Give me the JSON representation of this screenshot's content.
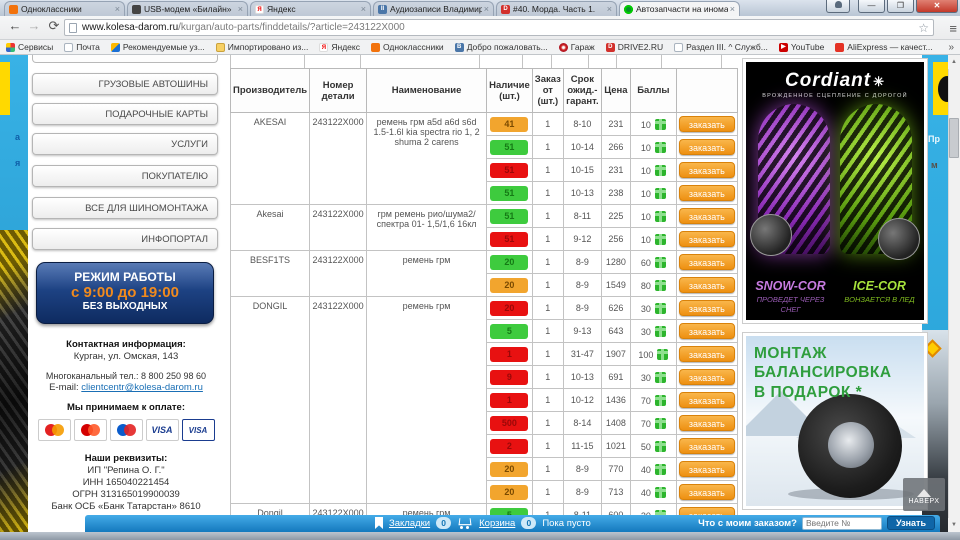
{
  "browser": {
    "tabs": [
      {
        "title": "Одноклассники",
        "icon": "odnoklassniki",
        "active": false
      },
      {
        "title": "USB-модем «Билайн»",
        "icon": "usb-modem",
        "active": false
      },
      {
        "title": "Яндекс",
        "icon": "yandex",
        "active": false
      },
      {
        "title": "Аудиозаписи Владимира",
        "icon": "vk-audio",
        "active": false
      },
      {
        "title": "#40. Морда. Часть 1.",
        "icon": "drive2",
        "active": false
      },
      {
        "title": "Автозапчасти на иномар",
        "icon": "kolesa",
        "active": true
      }
    ],
    "url_host": "www.kolesa-darom.ru",
    "url_path": "/kurgan/auto-parts/finddetails/?article=243122X000",
    "bookmarks": [
      {
        "label": "Сервисы",
        "icon": "apps-grid"
      },
      {
        "label": "Почта",
        "icon": "page"
      },
      {
        "label": "Рекомендуемые уз...",
        "icon": "bing"
      },
      {
        "label": "Импортировано из...",
        "icon": "folder"
      },
      {
        "label": "Яндекс",
        "icon": "yandex"
      },
      {
        "label": "Одноклассники",
        "icon": "odnoklassniki"
      },
      {
        "label": "Добро пожаловать...",
        "icon": "vk"
      },
      {
        "label": "Гараж",
        "icon": "garage"
      },
      {
        "label": "DRIVE2.RU",
        "icon": "drive2"
      },
      {
        "label": "Раздел III. ^ Служб...",
        "icon": "page"
      },
      {
        "label": "YouTube",
        "icon": "youtube"
      },
      {
        "label": "AliExpress — качест...",
        "icon": "aliexpress"
      }
    ],
    "bookmarks_overflow": "»"
  },
  "sidebar": {
    "buttons": [
      "ГРУЗОВЫЕ АВТОШИНЫ",
      "ПОДАРОЧНЫЕ КАРТЫ",
      "УСЛУГИ",
      "ПОКУПАТЕЛЮ",
      "ВСЕ ДЛЯ ШИНОМОНТАЖА",
      "ИНФОПОРТАЛ"
    ],
    "schedule": {
      "title": "РЕЖИМ РАБОТЫ",
      "hours": "с 9:00 до 19:00",
      "days": "БЕЗ ВЫХОДНЫХ"
    },
    "contact_heading": "Контактная информация:",
    "address": "Курган, ул. Омская, 143",
    "phone": "Многоканальный тел.: 8 800 250 98 60",
    "email_label": "E-mail:",
    "email": "clientcentr@kolesa-darom.ru",
    "payments_heading": "Мы принимаем к оплате:",
    "payments": [
      "MasterCard",
      "MasterCard Electronic",
      "Maestro",
      "VISA",
      "VISA Electron"
    ],
    "requisites_heading": "Наши реквизиты:",
    "requisites": [
      "ИП \"Репина О. Г.\"",
      "ИНН 165040221454",
      "ОГРН 313165019900039",
      "Банк ОСБ «Банк Татарстан» 8610"
    ]
  },
  "table": {
    "headers": [
      "Производитель",
      "Номер детали",
      "Наименование",
      "Наличие (шт.)",
      "Заказ от (шт.)",
      "Срок ожид.- гарант.",
      "Цена",
      "Баллы",
      ""
    ],
    "order_label": "заказать",
    "status_colors": {
      "green": "#3ecb3e",
      "orange": "#f2a52e",
      "red": "#e81111"
    },
    "status_text_colors": {
      "green": "#157a15",
      "orange": "#7a4a00",
      "red": "#9a0808"
    },
    "groups": [
      {
        "manufacturer": "AKESAI",
        "part": "243122X000",
        "name": "ремень грм а5d а6d s6d 1.5-1.6l kia spectra rio 1, 2 shuma 2 carens",
        "offers": [
          {
            "qty": "41",
            "status": "orange",
            "min": "1",
            "term": "8-10",
            "price": "231",
            "points": "10"
          },
          {
            "qty": "51",
            "status": "green",
            "min": "1",
            "term": "10-14",
            "price": "266",
            "points": "10"
          },
          {
            "qty": "51",
            "status": "red",
            "min": "1",
            "term": "10-15",
            "price": "231",
            "points": "10"
          },
          {
            "qty": "51",
            "status": "green",
            "min": "1",
            "term": "10-13",
            "price": "238",
            "points": "10"
          }
        ]
      },
      {
        "manufacturer": "Akesai",
        "part": "243122X000",
        "name": "грм ремень рио/шума2/ спектра 01- 1,5/1,6 16кл",
        "offers": [
          {
            "qty": "51",
            "status": "green",
            "min": "1",
            "term": "8-11",
            "price": "225",
            "points": "10"
          },
          {
            "qty": "51",
            "status": "red",
            "min": "1",
            "term": "9-12",
            "price": "256",
            "points": "10"
          }
        ]
      },
      {
        "manufacturer": "BESF1TS",
        "part": "243122X000",
        "name": "ремень грм",
        "offers": [
          {
            "qty": "20",
            "status": "green",
            "min": "1",
            "term": "8-9",
            "price": "1280",
            "points": "60"
          },
          {
            "qty": "20",
            "status": "orange",
            "min": "1",
            "term": "8-9",
            "price": "1549",
            "points": "80"
          }
        ]
      },
      {
        "manufacturer": "DONGIL",
        "part": "243122X000",
        "name": "ремень грм",
        "offers": [
          {
            "qty": "20",
            "status": "red",
            "min": "1",
            "term": "8-9",
            "price": "626",
            "points": "30"
          },
          {
            "qty": "5",
            "status": "green",
            "min": "1",
            "term": "9-13",
            "price": "643",
            "points": "30"
          },
          {
            "qty": "1",
            "status": "red",
            "min": "1",
            "term": "31-47",
            "price": "1907",
            "points": "100"
          },
          {
            "qty": "9",
            "status": "red",
            "min": "1",
            "term": "10-13",
            "price": "691",
            "points": "30"
          },
          {
            "qty": "1",
            "status": "red",
            "min": "1",
            "term": "10-12",
            "price": "1436",
            "points": "70"
          },
          {
            "qty": "500",
            "status": "red",
            "min": "1",
            "term": "8-14",
            "price": "1408",
            "points": "70"
          },
          {
            "qty": "2",
            "status": "red",
            "min": "1",
            "term": "11-15",
            "price": "1021",
            "points": "50"
          },
          {
            "qty": "20",
            "status": "orange",
            "min": "1",
            "term": "8-9",
            "price": "770",
            "points": "40"
          },
          {
            "qty": "20",
            "status": "orange",
            "min": "1",
            "term": "8-9",
            "price": "713",
            "points": "40"
          }
        ]
      },
      {
        "manufacturer": "Dongil",
        "part": "243122X000",
        "name": "ремень грм",
        "offers": [
          {
            "qty": "5",
            "status": "green",
            "min": "1",
            "term": "8-11",
            "price": "600",
            "points": "20"
          }
        ]
      }
    ]
  },
  "ads": {
    "cordiant": {
      "brand": "Cordiant",
      "tagline": "ВРОЖДЕННОЕ СЦЕПЛЕНИЕ С ДОРОГОЙ",
      "snow_name": "SNOW-COR",
      "snow_desc": "ПРОВЕДЕТ ЧЕРЕЗ СНЕГ",
      "ice_name": "ICE-COR",
      "ice_desc": "ВОНЗАЕТСЯ В ЛЕД"
    },
    "montage": {
      "line1": "МОНТАЖ",
      "line2": "БАЛАНСИРОВКА",
      "line3": "В ПОДАРОК *"
    },
    "to_top": "НАВЕРХ"
  },
  "bottom_bar": {
    "bookmarks_label": "Закладки",
    "bookmarks_count": "0",
    "cart_label": "Корзина",
    "cart_count": "0",
    "cart_empty": "Пока пусто",
    "order_question": "Что с моим заказом?",
    "order_placeholder": "Введите №",
    "order_button": "Узнать"
  },
  "edges": {
    "left_fragments": [
      "а",
      "я"
    ],
    "right_fragments": [
      "Пр",
      "м"
    ]
  }
}
